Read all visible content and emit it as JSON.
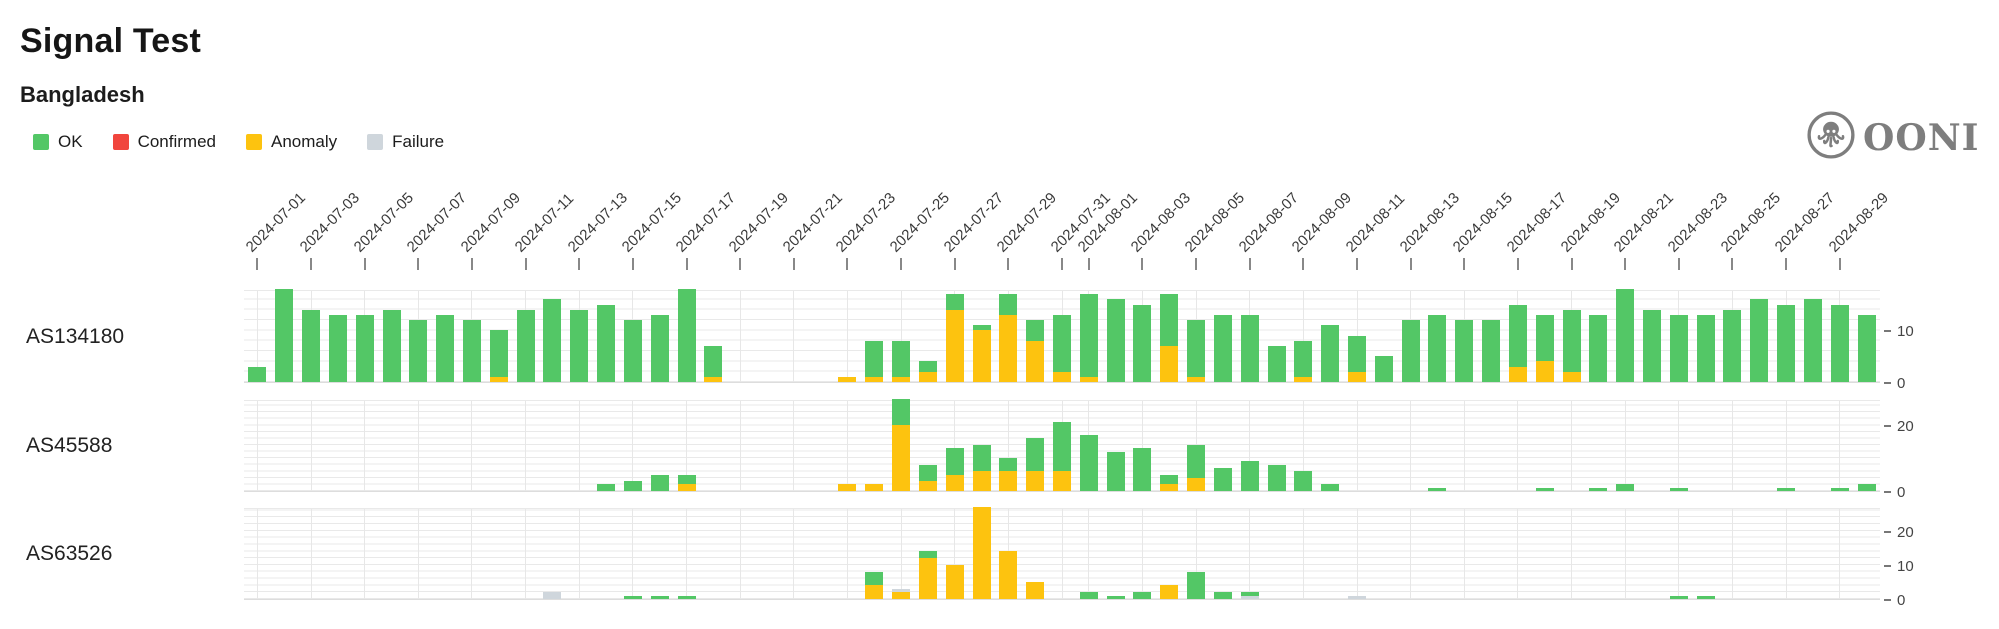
{
  "header": {
    "title": "Signal Test",
    "subtitle": "Bangladesh"
  },
  "legend": [
    {
      "label": "OK",
      "color": "#53C766"
    },
    {
      "label": "Confirmed",
      "color": "#F1453D"
    },
    {
      "label": "Anomaly",
      "color": "#FDC30F"
    },
    {
      "label": "Failure",
      "color": "#CFD6DC"
    }
  ],
  "logo": {
    "text": "OONI"
  },
  "chart_data": {
    "type": "bar",
    "stacked": true,
    "grid": true,
    "legend_position": "top-left",
    "x_start": "2024-07-01",
    "x_end": "2024-08-30",
    "x_tick_labels": [
      "2024-07-01",
      "2024-07-03",
      "2024-07-05",
      "2024-07-07",
      "2024-07-09",
      "2024-07-11",
      "2024-07-13",
      "2024-07-15",
      "2024-07-17",
      "2024-07-19",
      "2024-07-21",
      "2024-07-23",
      "2024-07-25",
      "2024-07-27",
      "2024-07-29",
      "2024-07-31",
      "2024-08-01",
      "2024-08-03",
      "2024-08-05",
      "2024-08-07",
      "2024-08-09",
      "2024-08-11",
      "2024-08-13",
      "2024-08-15",
      "2024-08-17",
      "2024-08-19",
      "2024-08-21",
      "2024-08-23",
      "2024-08-25",
      "2024-08-27",
      "2024-08-29"
    ],
    "series_keys": [
      "ok",
      "confirmed",
      "anomaly",
      "failure"
    ],
    "stack_order_bottom_to_top": [
      "anomaly",
      "failure",
      "ok"
    ],
    "colors": {
      "ok": "#53C766",
      "confirmed": "#F1453D",
      "anomaly": "#FDC30F",
      "failure": "#CFD6DC"
    },
    "rows": [
      {
        "label": "AS134180",
        "ymax": 18,
        "yticks": [
          0,
          10
        ],
        "bars": {
          "07-01": {
            "ok": 3
          },
          "07-02": {
            "ok": 18
          },
          "07-03": {
            "ok": 14
          },
          "07-04": {
            "ok": 13
          },
          "07-05": {
            "ok": 13
          },
          "07-06": {
            "ok": 14
          },
          "07-07": {
            "ok": 12
          },
          "07-08": {
            "ok": 13
          },
          "07-09": {
            "ok": 12
          },
          "07-10": {
            "ok": 9,
            "anomaly": 1
          },
          "07-11": {
            "ok": 14
          },
          "07-12": {
            "ok": 16
          },
          "07-13": {
            "ok": 14
          },
          "07-14": {
            "ok": 15
          },
          "07-15": {
            "ok": 12
          },
          "07-16": {
            "ok": 13
          },
          "07-17": {
            "ok": 18
          },
          "07-18": {
            "ok": 6,
            "anomaly": 1
          },
          "07-23": {
            "anomaly": 1
          },
          "07-24": {
            "ok": 7,
            "anomaly": 1
          },
          "07-25": {
            "ok": 7,
            "anomaly": 1
          },
          "07-26": {
            "ok": 2,
            "anomaly": 2
          },
          "07-27": {
            "ok": 3,
            "anomaly": 14
          },
          "07-28": {
            "ok": 1,
            "anomaly": 10
          },
          "07-29": {
            "ok": 4,
            "anomaly": 13
          },
          "07-30": {
            "ok": 4,
            "anomaly": 8
          },
          "07-31": {
            "ok": 11,
            "anomaly": 2
          },
          "08-01": {
            "ok": 16,
            "anomaly": 1
          },
          "08-02": {
            "ok": 16
          },
          "08-03": {
            "ok": 15
          },
          "08-04": {
            "ok": 10,
            "anomaly": 7
          },
          "08-05": {
            "ok": 11,
            "anomaly": 1
          },
          "08-06": {
            "ok": 13
          },
          "08-07": {
            "ok": 13
          },
          "08-08": {
            "ok": 7
          },
          "08-09": {
            "ok": 7,
            "anomaly": 1
          },
          "08-10": {
            "ok": 11
          },
          "08-11": {
            "ok": 7,
            "anomaly": 2
          },
          "08-12": {
            "ok": 5
          },
          "08-13": {
            "ok": 12
          },
          "08-14": {
            "ok": 13
          },
          "08-15": {
            "ok": 12
          },
          "08-16": {
            "ok": 12
          },
          "08-17": {
            "ok": 12,
            "anomaly": 3
          },
          "08-18": {
            "ok": 9,
            "anomaly": 4
          },
          "08-19": {
            "ok": 12,
            "anomaly": 2
          },
          "08-20": {
            "ok": 13
          },
          "08-21": {
            "ok": 18
          },
          "08-22": {
            "ok": 14
          },
          "08-23": {
            "ok": 13
          },
          "08-24": {
            "ok": 13
          },
          "08-25": {
            "ok": 14
          },
          "08-26": {
            "ok": 16
          },
          "08-27": {
            "ok": 15
          },
          "08-28": {
            "ok": 16
          },
          "08-29": {
            "ok": 15
          },
          "08-30": {
            "ok": 13
          }
        }
      },
      {
        "label": "AS45588",
        "ymax": 28,
        "yticks": [
          0,
          20
        ],
        "bars": {
          "07-14": {
            "ok": 2
          },
          "07-15": {
            "ok": 3
          },
          "07-16": {
            "ok": 5
          },
          "07-17": {
            "ok": 3,
            "anomaly": 2
          },
          "07-23": {
            "anomaly": 2
          },
          "07-24": {
            "anomaly": 2
          },
          "07-25": {
            "ok": 8,
            "anomaly": 20
          },
          "07-26": {
            "ok": 5,
            "anomaly": 3
          },
          "07-27": {
            "ok": 8,
            "anomaly": 5
          },
          "07-28": {
            "ok": 8,
            "anomaly": 6
          },
          "07-29": {
            "ok": 4,
            "anomaly": 6
          },
          "07-30": {
            "ok": 10,
            "anomaly": 6
          },
          "07-31": {
            "ok": 15,
            "anomaly": 6
          },
          "08-01": {
            "ok": 17
          },
          "08-02": {
            "ok": 12
          },
          "08-03": {
            "ok": 13
          },
          "08-04": {
            "ok": 3,
            "anomaly": 2
          },
          "08-05": {
            "ok": 10,
            "anomaly": 4
          },
          "08-06": {
            "ok": 7
          },
          "08-07": {
            "ok": 9
          },
          "08-08": {
            "ok": 8
          },
          "08-09": {
            "ok": 6
          },
          "08-10": {
            "ok": 2
          },
          "08-14": {
            "ok": 1
          },
          "08-18": {
            "ok": 1
          },
          "08-20": {
            "ok": 1
          },
          "08-21": {
            "ok": 2
          },
          "08-23": {
            "ok": 1
          },
          "08-27": {
            "ok": 1
          },
          "08-29": {
            "ok": 1
          },
          "08-30": {
            "ok": 2
          }
        }
      },
      {
        "label": "AS63526",
        "ymax": 27,
        "yticks": [
          0,
          10,
          20
        ],
        "bars": {
          "07-12": {
            "failure": 2
          },
          "07-15": {
            "ok": 1
          },
          "07-16": {
            "ok": 1
          },
          "07-17": {
            "ok": 1
          },
          "07-24": {
            "ok": 4,
            "anomaly": 4
          },
          "07-25": {
            "anomaly": 2,
            "failure": 1
          },
          "07-26": {
            "ok": 2,
            "anomaly": 12
          },
          "07-27": {
            "anomaly": 10
          },
          "07-28": {
            "anomaly": 27
          },
          "07-29": {
            "anomaly": 14
          },
          "07-30": {
            "anomaly": 5
          },
          "08-01": {
            "ok": 2
          },
          "08-02": {
            "ok": 1
          },
          "08-03": {
            "ok": 2
          },
          "08-04": {
            "anomaly": 4
          },
          "08-05": {
            "ok": 8
          },
          "08-06": {
            "ok": 2
          },
          "08-07": {
            "ok": 1,
            "failure": 1
          },
          "08-11": {
            "failure": 1
          },
          "08-23": {
            "ok": 1
          },
          "08-24": {
            "ok": 1
          }
        }
      }
    ]
  }
}
